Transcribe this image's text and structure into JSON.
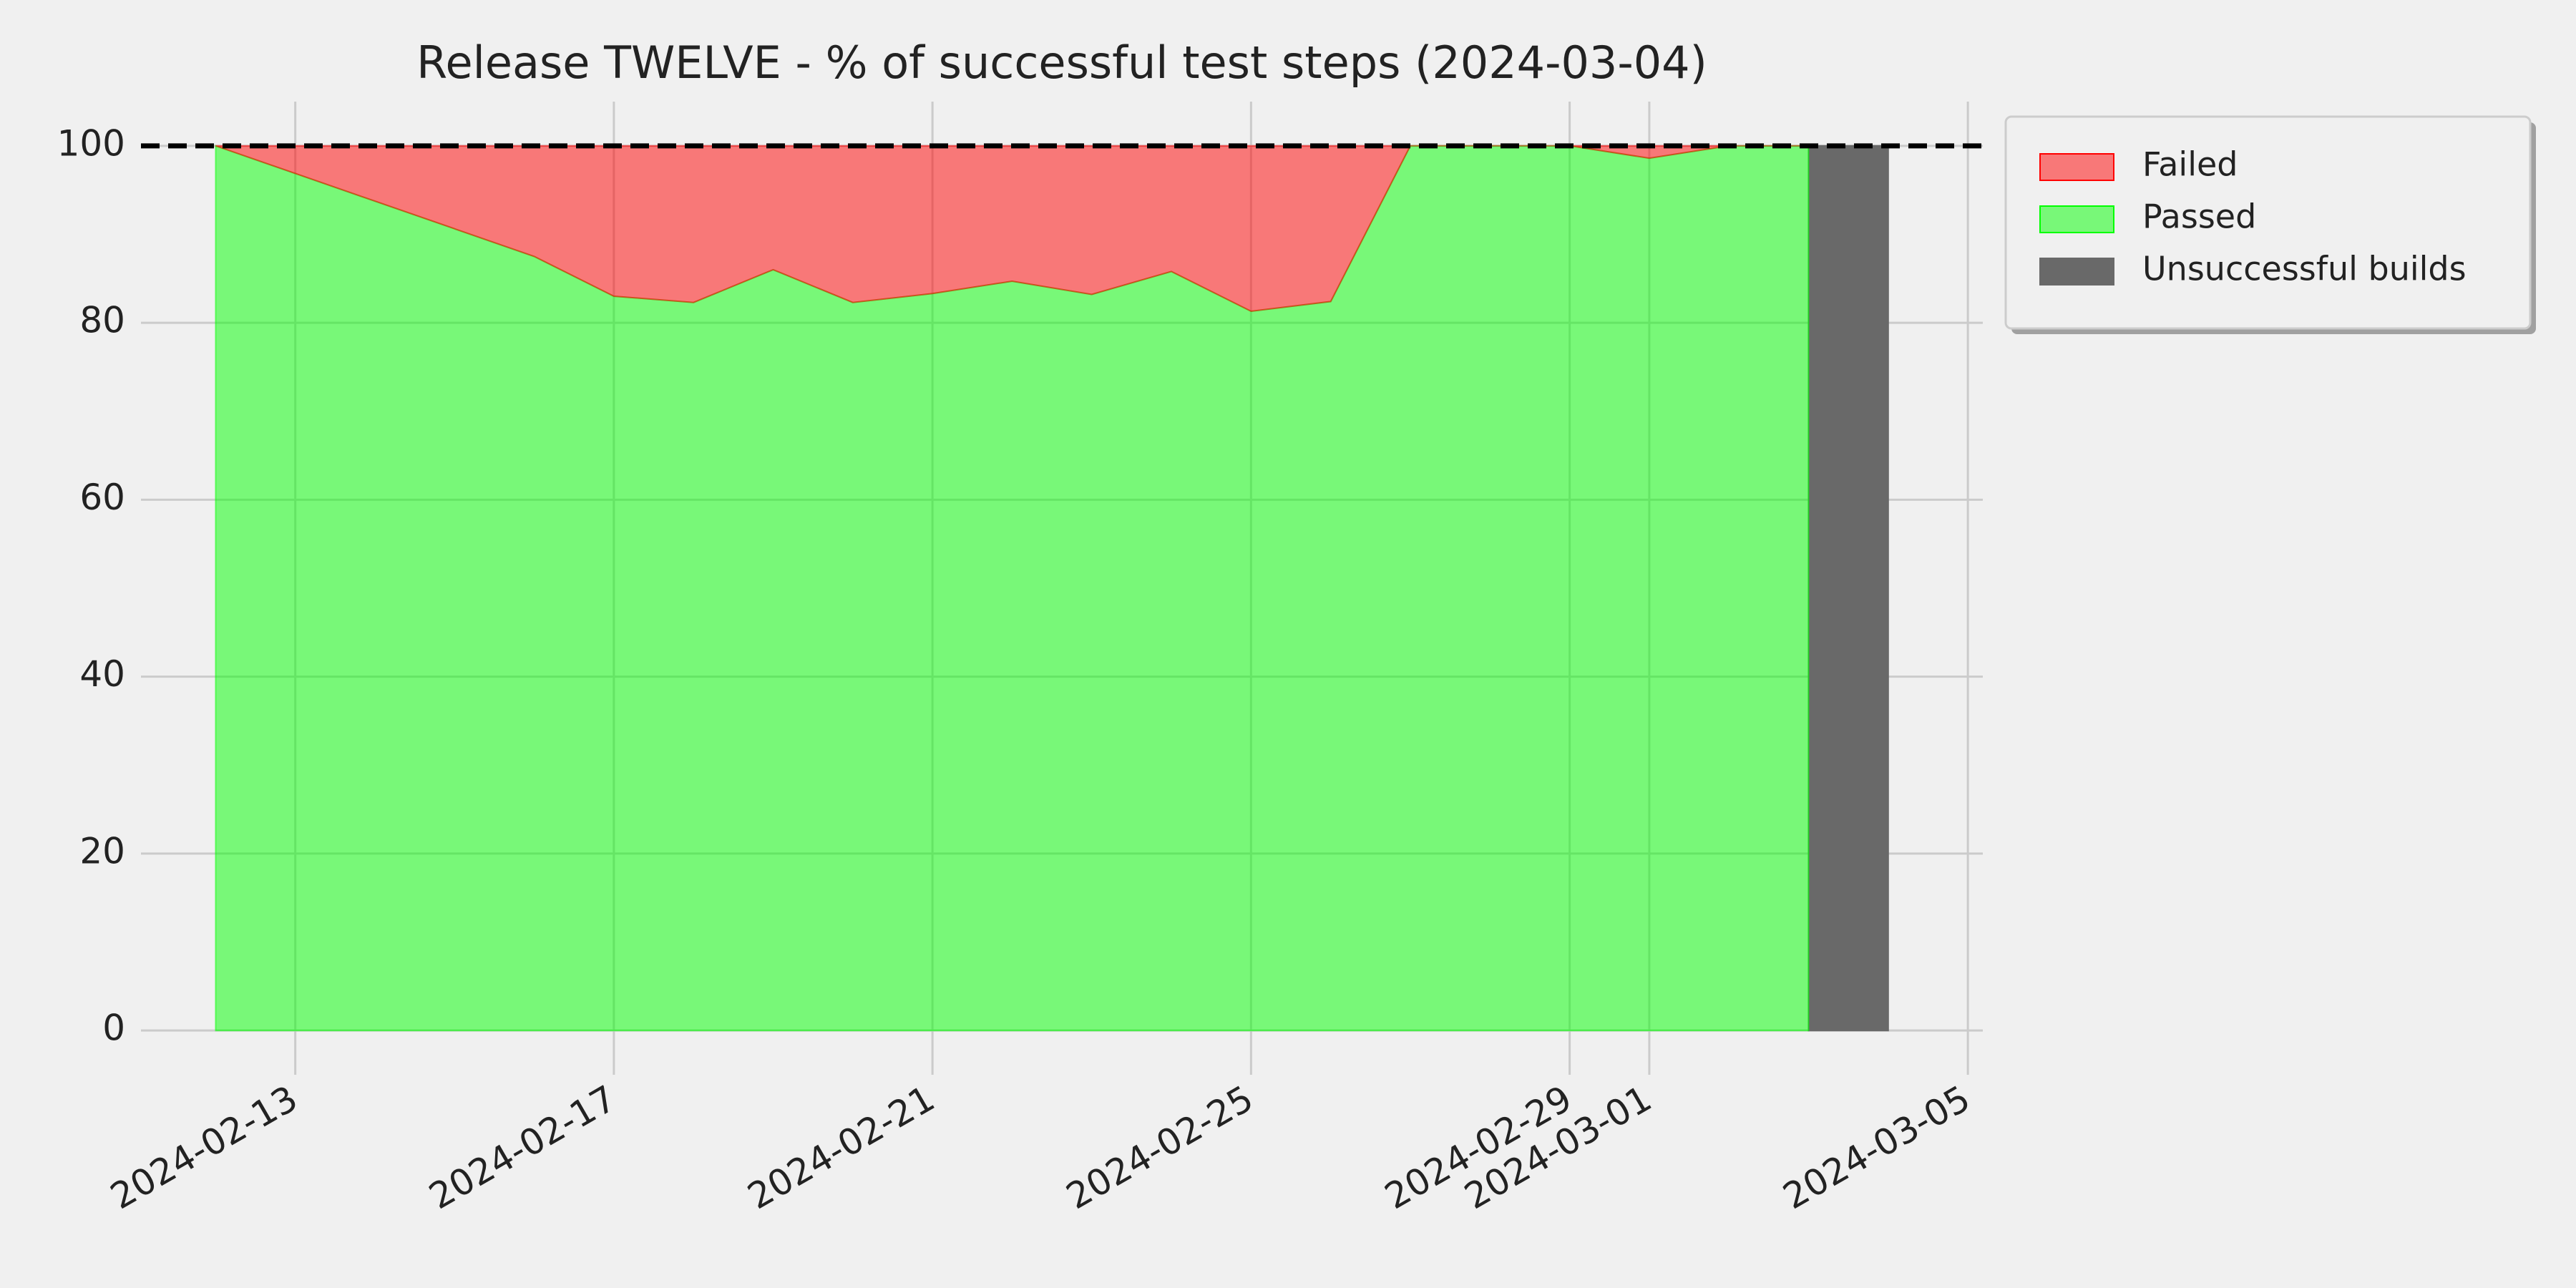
{
  "chart_data": {
    "type": "area",
    "title": "Release TWELVE - % of successful test steps (2024-03-04)",
    "x": [
      "2024-02-12",
      "2024-02-16",
      "2024-02-17",
      "2024-02-18",
      "2024-02-19",
      "2024-02-20",
      "2024-02-21",
      "2024-02-22",
      "2024-02-23",
      "2024-02-24",
      "2024-02-25",
      "2024-02-26",
      "2024-02-27",
      "2024-02-28",
      "2024-02-29",
      "2024-03-01",
      "2024-03-02",
      "2024-03-03",
      "2024-03-04"
    ],
    "series": [
      {
        "name": "Failed",
        "color": "#ff0000",
        "alpha": 0.5,
        "stack": "tests",
        "values": [
          0,
          12.5,
          17,
          17.7,
          14,
          17.7,
          16.7,
          15.3,
          16.8,
          14.2,
          18.7,
          17.6,
          0,
          0,
          0,
          1.4,
          0,
          0,
          null
        ]
      },
      {
        "name": "Passed",
        "color": "#00ff00",
        "alpha": 0.5,
        "stack": "tests",
        "values": [
          100,
          87.5,
          83,
          82.3,
          86,
          82.3,
          83.3,
          84.7,
          83.2,
          85.8,
          81.3,
          82.4,
          100,
          100,
          100,
          98.6,
          100,
          100,
          null
        ]
      },
      {
        "name": "Unsuccessful builds",
        "color": "#696969",
        "alpha": 1,
        "values": [
          null,
          null,
          null,
          null,
          null,
          null,
          null,
          null,
          null,
          null,
          null,
          null,
          null,
          null,
          null,
          null,
          null,
          100,
          100
        ]
      }
    ],
    "hline": 100,
    "xlim": [
      "2024-02-11T01:30Z",
      "2024-03-05T04:30Z"
    ],
    "xticks": [
      "2024-02-13",
      "2024-02-17",
      "2024-02-21",
      "2024-02-25",
      "2024-02-29",
      "2024-03-01",
      "2024-03-05"
    ],
    "ylim": [
      -5,
      105
    ],
    "yticks": [
      0,
      20,
      40,
      60,
      80,
      100
    ],
    "grid": true,
    "legend": "upper-right-outside"
  }
}
